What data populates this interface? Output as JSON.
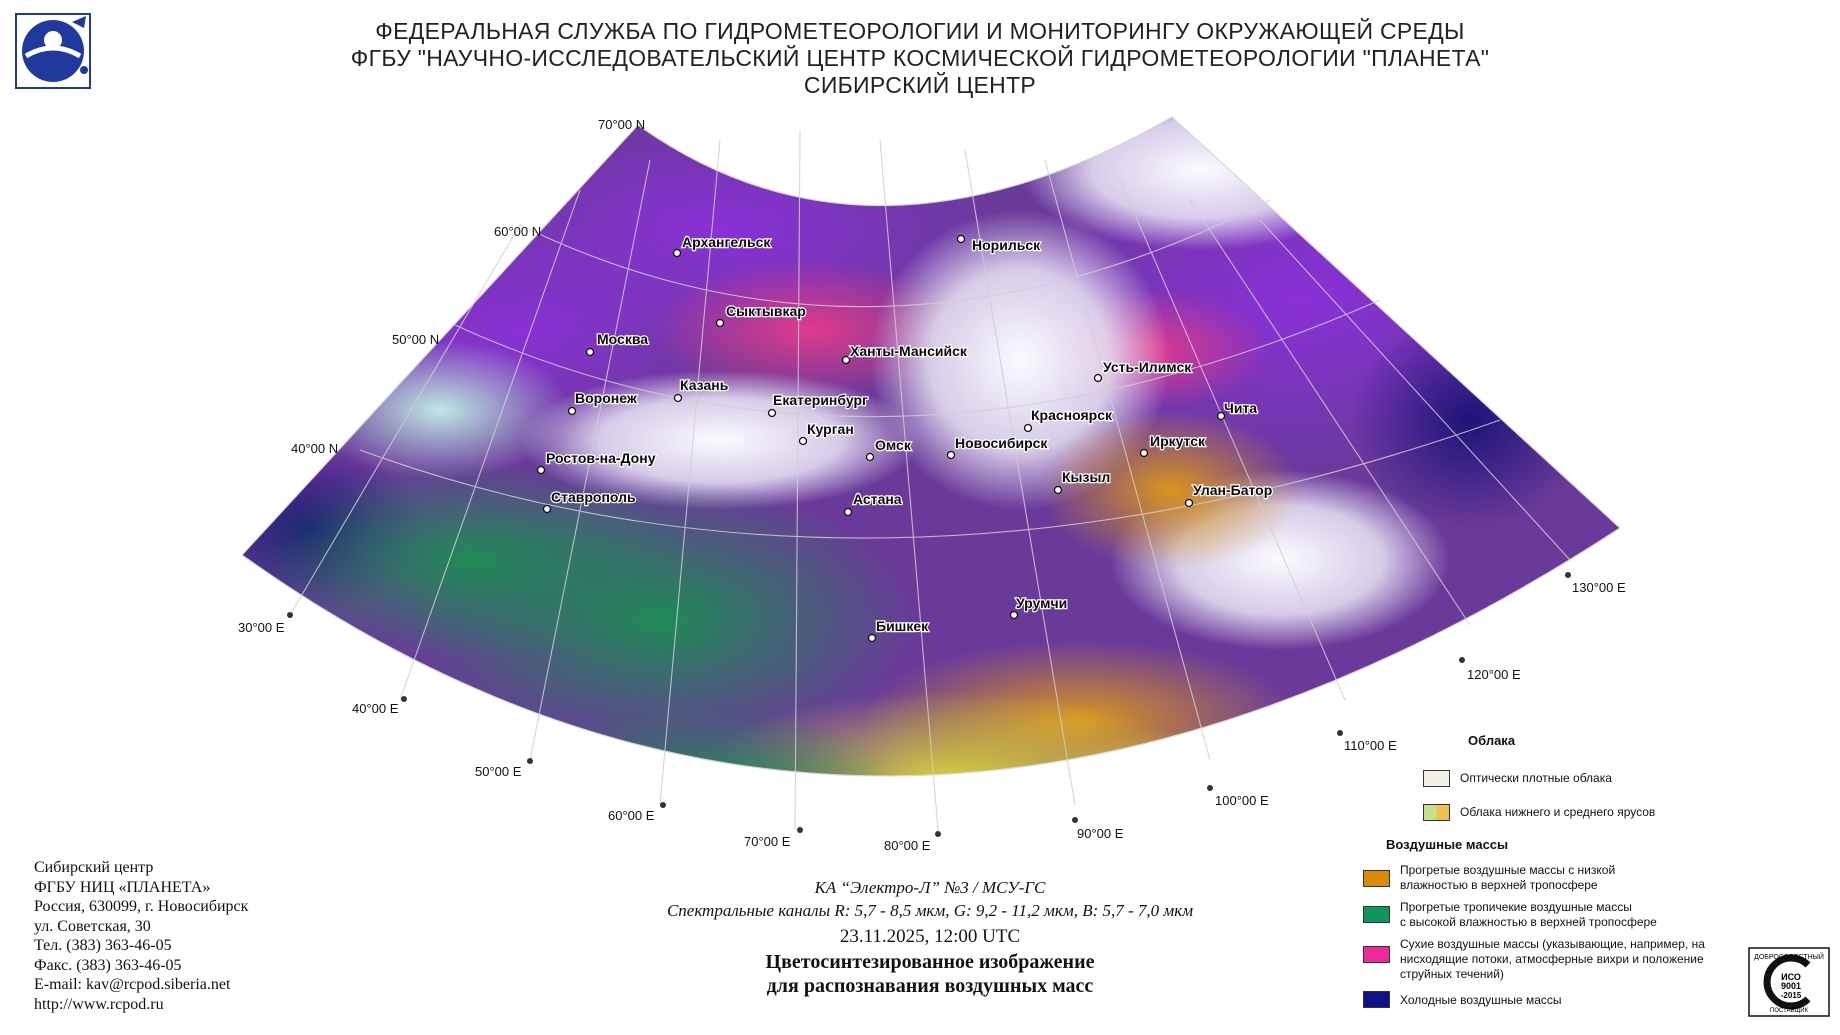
{
  "header": {
    "line1": "ФЕДЕРАЛЬНАЯ СЛУЖБА ПО ГИДРОМЕТЕОРОЛОГИИ И МОНИТОРИНГУ ОКРУЖАЮЩЕЙ СРЕДЫ",
    "line2": "ФГБУ \"НАУЧНО-ИССЛЕДОВАТЕЛЬСКИЙ ЦЕНТР КОСМИЧЕСКОЙ ГИДРОМЕТЕОРОЛОГИИ \"ПЛАНЕТА\"",
    "line3": "СИБИРСКИЙ ЦЕНТР"
  },
  "map": {
    "latitude_labels": [
      "70°00 N",
      "60°00 N",
      "50°00 N",
      "40°00 N"
    ],
    "longitude_labels": [
      "30°00 E",
      "40°00 E",
      "50°00 E",
      "60°00 E",
      "70°00 E",
      "80°00 E",
      "90°00 E",
      "100°00 E",
      "110°00 E",
      "120°00 E",
      "130°00 E"
    ],
    "cities": [
      "Архангельск",
      "Норильск",
      "Сыктывкар",
      "Москва",
      "Ханты-Мансийск",
      "Казань",
      "Усть-Илимск",
      "Воронеж",
      "Екатеринбург",
      "Красноярск",
      "Чита",
      "Курган",
      "Омск",
      "Новосибирск",
      "Иркутск",
      "Ростов-на-Дону",
      "Кызыл",
      "Улан-Батор",
      "Ставрополь",
      "Астана",
      "Урумчи",
      "Бишкек"
    ],
    "colors": {
      "cold_purple": "#7a2ad0",
      "dry_magenta": "#e0308e",
      "dense_white": "#f2f2f8",
      "tropical_green": "#2e9a5a",
      "warm_orange": "#d9951e",
      "cold_navy": "#25157a",
      "yellow_green": "#b8d23a"
    }
  },
  "legend": {
    "clouds_title": "Облака",
    "clouds_items": [
      {
        "label": "Оптически плотные облака",
        "color": "#f3f0e4"
      },
      {
        "label": "Облака нижнего и среднего ярусов",
        "colors": [
          "#c8e08a",
          "#efc050"
        ]
      }
    ],
    "air_title": "Воздушные массы",
    "air_items": [
      {
        "lines": [
          "Прогретые воздушные массы с низкой",
          "влажностью в верхней тропосфере"
        ],
        "color": "#d98a0c"
      },
      {
        "lines": [
          "Прогретые тропичекие воздушные массы",
          "с высокой влажностью в верхней тропосфере"
        ],
        "color": "#10955a"
      },
      {
        "lines": [
          "Сухие воздушные массы (указывающие, например, на",
          "нисходящие потоки, атмосферные вихри и положение",
          "струйных течений)"
        ],
        "color": "#f0299a"
      },
      {
        "lines": [
          "Холодные воздушные массы"
        ],
        "color": "#10108a"
      }
    ]
  },
  "org": {
    "lines": [
      "Сибирский центр",
      "ФГБУ НИЦ «ПЛАНЕТА»",
      "Россия, 630099, г. Новосибирск",
      "ул. Советская, 30",
      "Тел. (383) 363-46-05",
      "Факс. (383) 363-46-05",
      "E-mail: kav@rcpod.siberia.net",
      "http://www.rcpod.ru"
    ]
  },
  "caption": {
    "satellite": "КА “Электро-Л” №3 / МСУ-ГС",
    "channels": "Спектральные каналы R: 5,7 - 8,5 мкм, G: 9,2 - 11,2 мкм, B: 5,7 - 7,0 мкм",
    "datetime": "23.11.2025, 12:00 UTC",
    "title1": "Цветосинтезированное изображение",
    "title2": "для распознавания воздушных масс"
  },
  "cert": {
    "top_text": "ДОБРОСОВЕСТНЫЙ",
    "iso1": "ИСО",
    "iso2": "9001",
    "iso3": "-2015",
    "bottom_text": "ПОСТАВЩИК"
  }
}
